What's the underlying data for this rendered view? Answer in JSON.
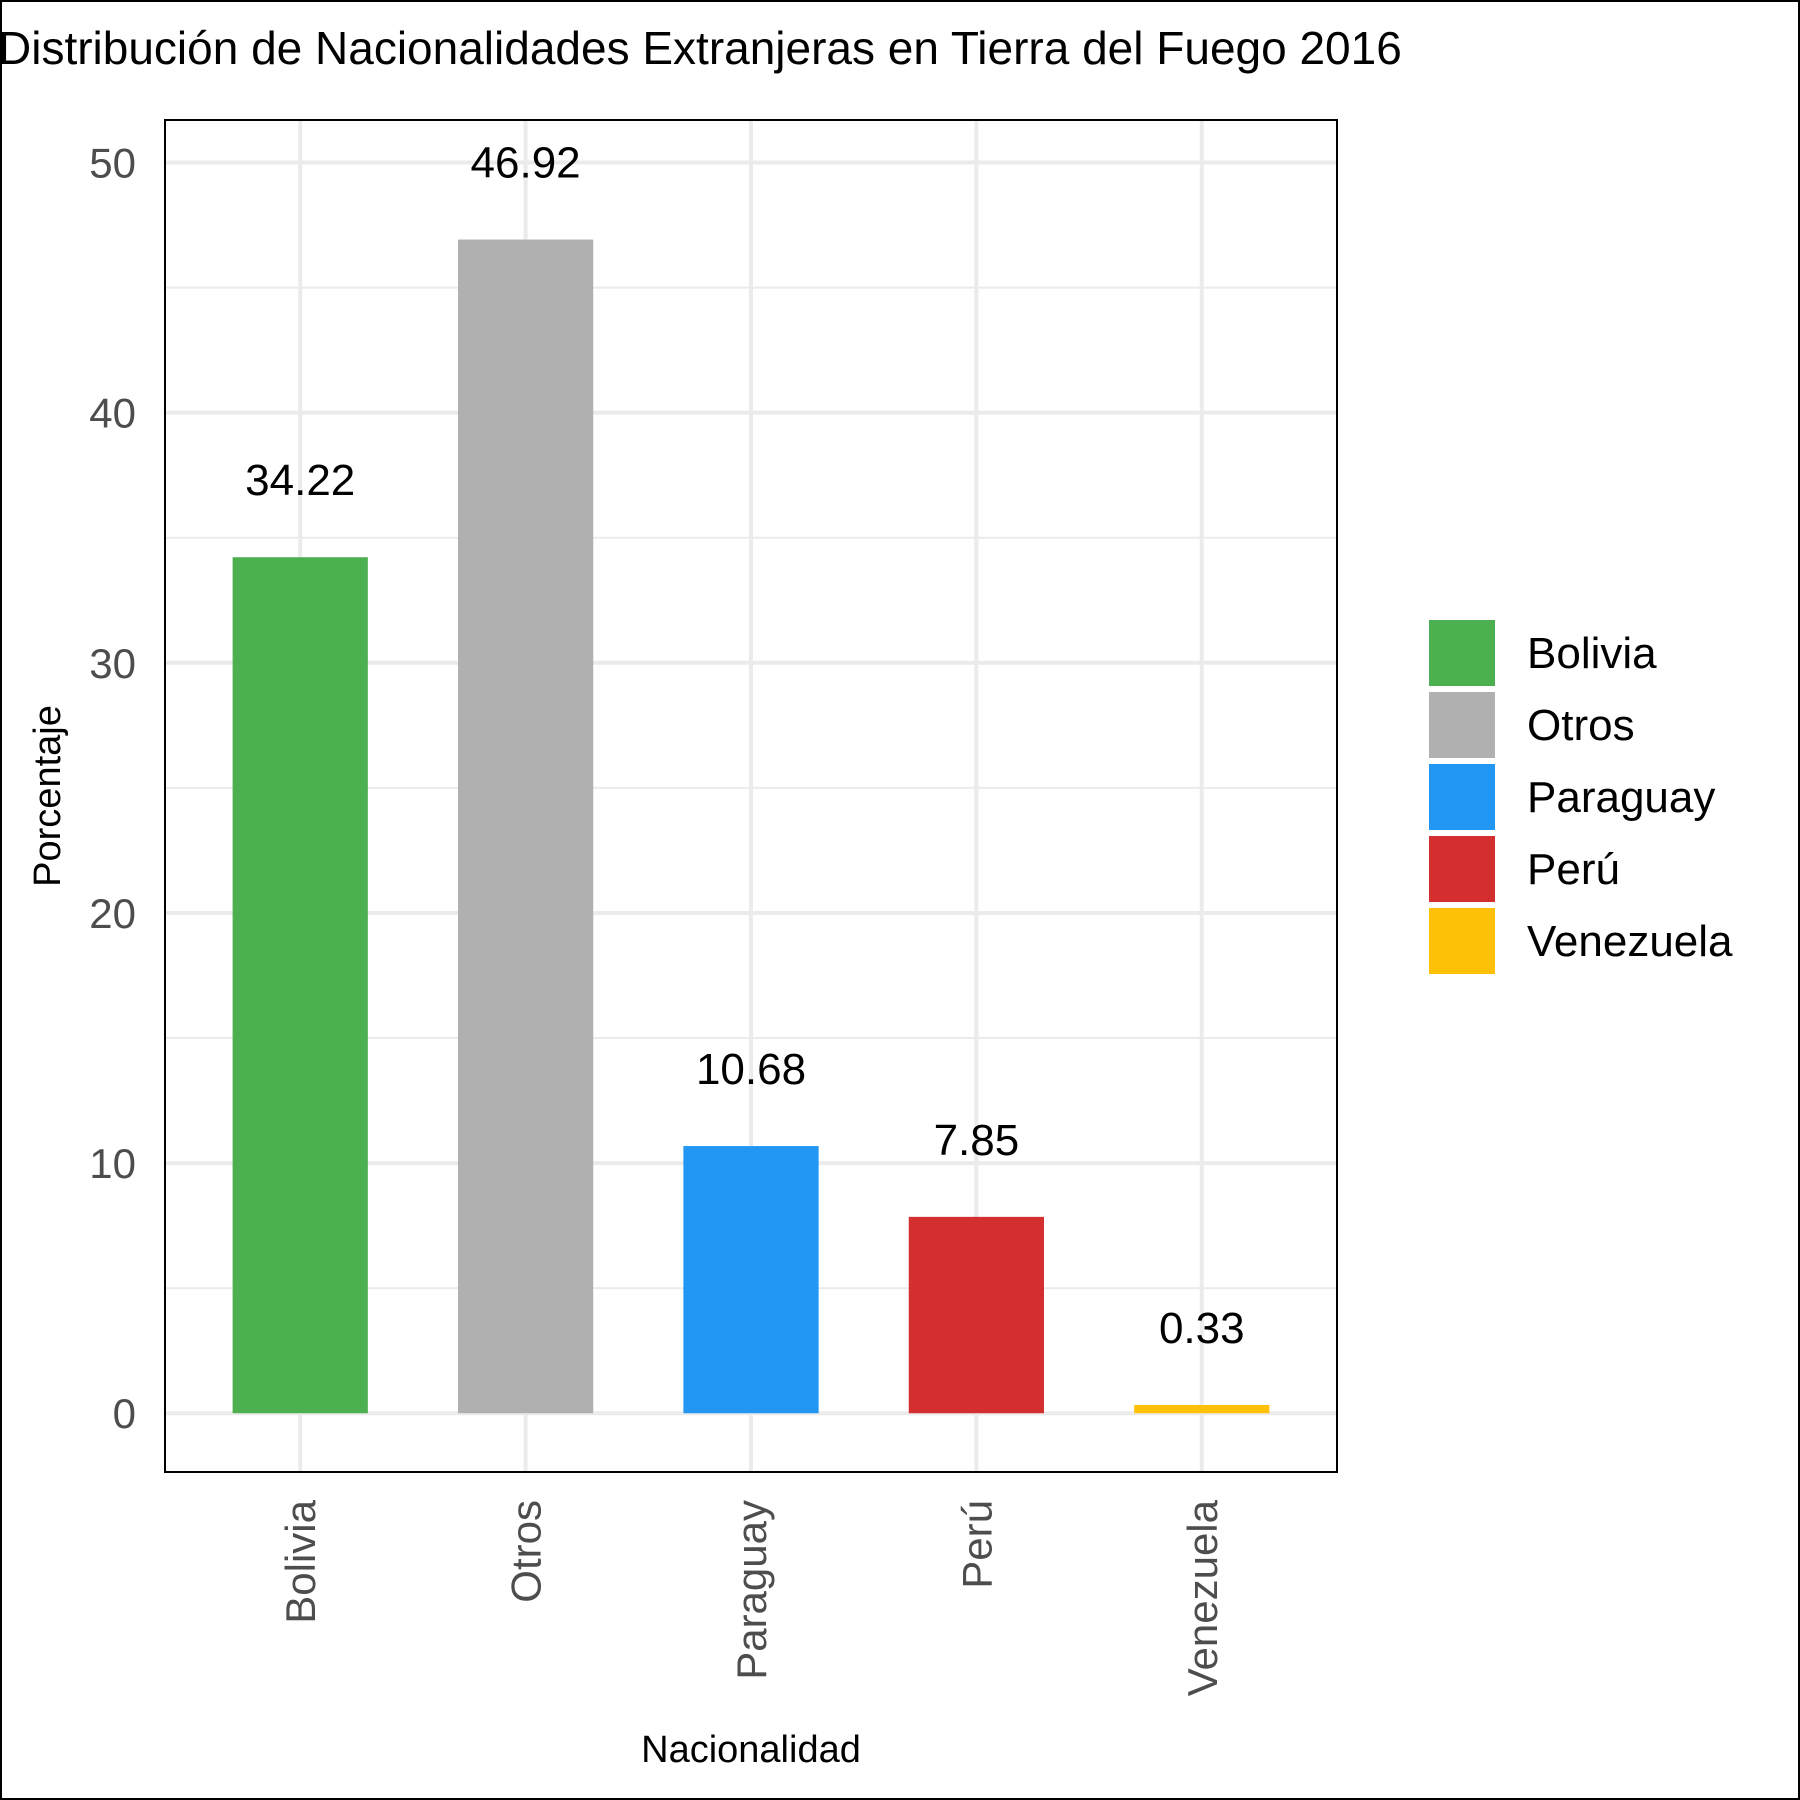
{
  "chart_data": {
    "type": "bar",
    "title": "Distribución de Nacionalidades Extranjeras en Tierra del Fuego 2016",
    "xlabel": "Nacionalidad",
    "ylabel": "Porcentaje",
    "categories": [
      "Bolivia",
      "Otros",
      "Paraguay",
      "Perú",
      "Venezuela"
    ],
    "values": [
      34.22,
      46.92,
      10.68,
      7.85,
      0.33
    ],
    "data_labels": [
      "34.22",
      "46.92",
      "10.68",
      "7.85",
      "0.33"
    ],
    "colors": [
      "#4caf50",
      "#b0b0b0",
      "#2196f3",
      "#d32f2f",
      "#ffc107"
    ],
    "ylim": [
      -2.35,
      51.7
    ],
    "yticks": [
      0,
      10,
      20,
      30,
      40,
      50
    ],
    "grid": true,
    "legend": {
      "position": "right",
      "entries": [
        "Bolivia",
        "Otros",
        "Paraguay",
        "Perú",
        "Venezuela"
      ]
    }
  }
}
